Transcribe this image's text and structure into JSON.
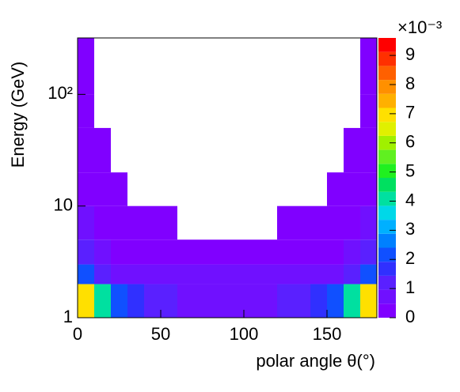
{
  "chart_data": {
    "type": "heatmap",
    "xlabel": "polar angle θ(°)",
    "ylabel": "Energy (GeV)",
    "xbins": [
      0,
      10,
      20,
      30,
      40,
      50,
      60,
      70,
      80,
      90,
      100,
      110,
      120,
      130,
      140,
      150,
      160,
      170,
      180
    ],
    "ybins": [
      1,
      2,
      3,
      5,
      10,
      20,
      50,
      100,
      320
    ],
    "z": [
      [
        7,
        4,
        2,
        1.5,
        1,
        1,
        0.7,
        0.7,
        0.7,
        0.7,
        0.7,
        0.7,
        1,
        1,
        1.5,
        2,
        4,
        7
      ],
      [
        2,
        1,
        0.8,
        0.6,
        0.6,
        0.6,
        0.6,
        0.6,
        0.6,
        0.6,
        0.6,
        0.6,
        0.6,
        0.6,
        0.6,
        0.8,
        1,
        2
      ],
      [
        1,
        0.6,
        0.4,
        0.4,
        0.4,
        0.3,
        0.3,
        0.3,
        0.3,
        0.3,
        0.3,
        0.3,
        0.3,
        0.4,
        0.4,
        0.4,
        0.6,
        1
      ],
      [
        0.6,
        0.4,
        0.3,
        0.2,
        0.2,
        0.1,
        0,
        0,
        0,
        0,
        0,
        0,
        0.1,
        0.2,
        0.2,
        0.3,
        0.4,
        0.6
      ],
      [
        0.4,
        0.2,
        0.1,
        0,
        0,
        0,
        0,
        0,
        0,
        0,
        0,
        0,
        0,
        0,
        0,
        0.1,
        0.2,
        0.4
      ],
      [
        0.2,
        0.05,
        0,
        0,
        0,
        0,
        0,
        0,
        0,
        0,
        0,
        0,
        0,
        0,
        0,
        0,
        0.05,
        0.2
      ],
      [
        0.1,
        0,
        0,
        0,
        0,
        0,
        0,
        0,
        0,
        0,
        0,
        0,
        0,
        0,
        0,
        0,
        0,
        0.1
      ],
      [
        0.03,
        0,
        0,
        0,
        0,
        0,
        0,
        0,
        0,
        0,
        0,
        0,
        0,
        0,
        0,
        0,
        0,
        0.03
      ]
    ],
    "xlim": [
      0,
      180
    ],
    "xticks": [
      0,
      50,
      100,
      150
    ],
    "ylim": [
      1,
      320
    ],
    "ylog": true,
    "yticks": [
      1,
      10,
      {
        "value": 100,
        "label": "10²"
      }
    ],
    "zlim": [
      0,
      9.6
    ],
    "zticks": [
      0,
      1,
      2,
      3,
      4,
      5,
      6,
      7,
      8,
      9
    ],
    "z_exponent_label": "×10⁻³",
    "palette": [
      "#8000ff",
      "#7010ff",
      "#5a20ff",
      "#3030ff",
      "#1050ff",
      "#0080ff",
      "#00b0ff",
      "#00d8e8",
      "#00e0a0",
      "#00e060",
      "#20f020",
      "#60f020",
      "#a0f000",
      "#e0f000",
      "#ffe000",
      "#ffb000",
      "#ff9000",
      "#ff6000",
      "#ff3000",
      "#ff0000"
    ]
  }
}
